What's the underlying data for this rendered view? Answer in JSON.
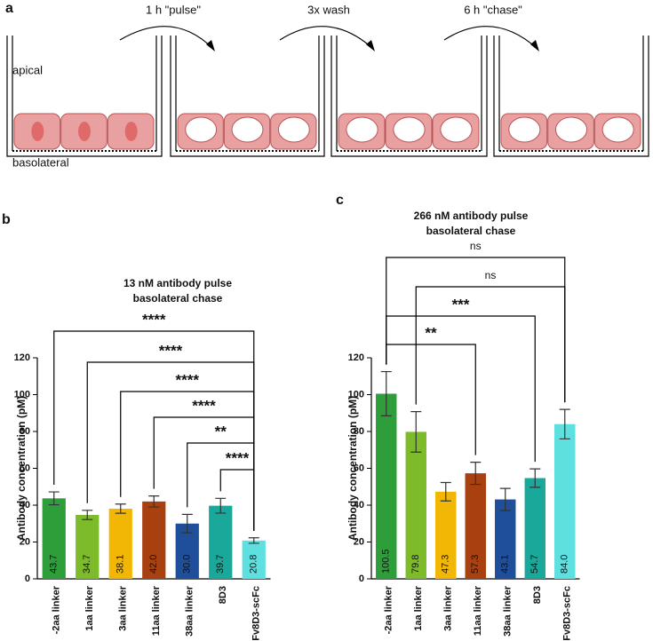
{
  "panel_a": {
    "label": "a",
    "steps": [
      "1 h \"pulse\"",
      "3x wash",
      "6 h \"chase\""
    ],
    "apical": "apical",
    "basolateral": "basolateral"
  },
  "chart_data": [
    {
      "type": "bar",
      "panel": "b",
      "title": "13 nM antibody pulse",
      "subtitle": "basolateral chase",
      "ylabel": "Antibody concentration (pM)",
      "categories": [
        "-2aa linker",
        "1aa linker",
        "3aa linker",
        "11aa linker",
        "38aa linker",
        "8D3",
        "scFv8D3-scFc"
      ],
      "values": [
        43.7,
        34.7,
        38.1,
        42.0,
        30.0,
        39.7,
        20.8
      ],
      "value_labels": [
        "43.7",
        "34.7",
        "38.1",
        "42.0",
        "30.0",
        "39.7",
        "20.8"
      ],
      "errors": [
        3.5,
        2.5,
        2.5,
        3,
        5,
        4,
        1.5
      ],
      "colors": [
        "#2e9e3a",
        "#7dbb2a",
        "#f2b705",
        "#a8400f",
        "#1f4e9a",
        "#1aa89a",
        "#5fe0e0"
      ],
      "ylim": [
        0,
        120
      ],
      "yticks": [
        0,
        20,
        40,
        60,
        80,
        100,
        120
      ],
      "comparisons": [
        {
          "from": 0,
          "to": 6,
          "label": "****"
        },
        {
          "from": 1,
          "to": 6,
          "label": "****"
        },
        {
          "from": 2,
          "to": 6,
          "label": "****"
        },
        {
          "from": 3,
          "to": 6,
          "label": "****"
        },
        {
          "from": 4,
          "to": 6,
          "label": "**"
        },
        {
          "from": 5,
          "to": 6,
          "label": "****"
        }
      ]
    },
    {
      "type": "bar",
      "panel": "c",
      "title": "266 nM antibody pulse",
      "subtitle": "basolateral chase",
      "ylabel": "Antibody concentration (pM)",
      "categories": [
        "-2aa linker",
        "1aa linker",
        "3aa linker",
        "11aa linker",
        "38aa linker",
        "8D3",
        "scFv8D3-scFc"
      ],
      "values": [
        100.5,
        79.8,
        47.3,
        57.3,
        43.1,
        54.7,
        84.0
      ],
      "value_labels": [
        "100.5",
        "79.8",
        "47.3",
        "57.3",
        "43.1",
        "54.7",
        "84.0"
      ],
      "errors": [
        12,
        11,
        5,
        6,
        6,
        5,
        8
      ],
      "colors": [
        "#2e9e3a",
        "#7dbb2a",
        "#f2b705",
        "#a8400f",
        "#1f4e9a",
        "#1aa89a",
        "#5fe0e0"
      ],
      "ylim": [
        0,
        120
      ],
      "yticks": [
        0,
        20,
        40,
        60,
        80,
        100,
        120
      ],
      "comparisons": [
        {
          "from": 0,
          "to": 6,
          "label": "ns"
        },
        {
          "from": 1,
          "to": 6,
          "label": "ns"
        },
        {
          "from": 0,
          "to": 5,
          "label": "***"
        },
        {
          "from": 0,
          "to": 3,
          "label": "**"
        }
      ]
    }
  ]
}
